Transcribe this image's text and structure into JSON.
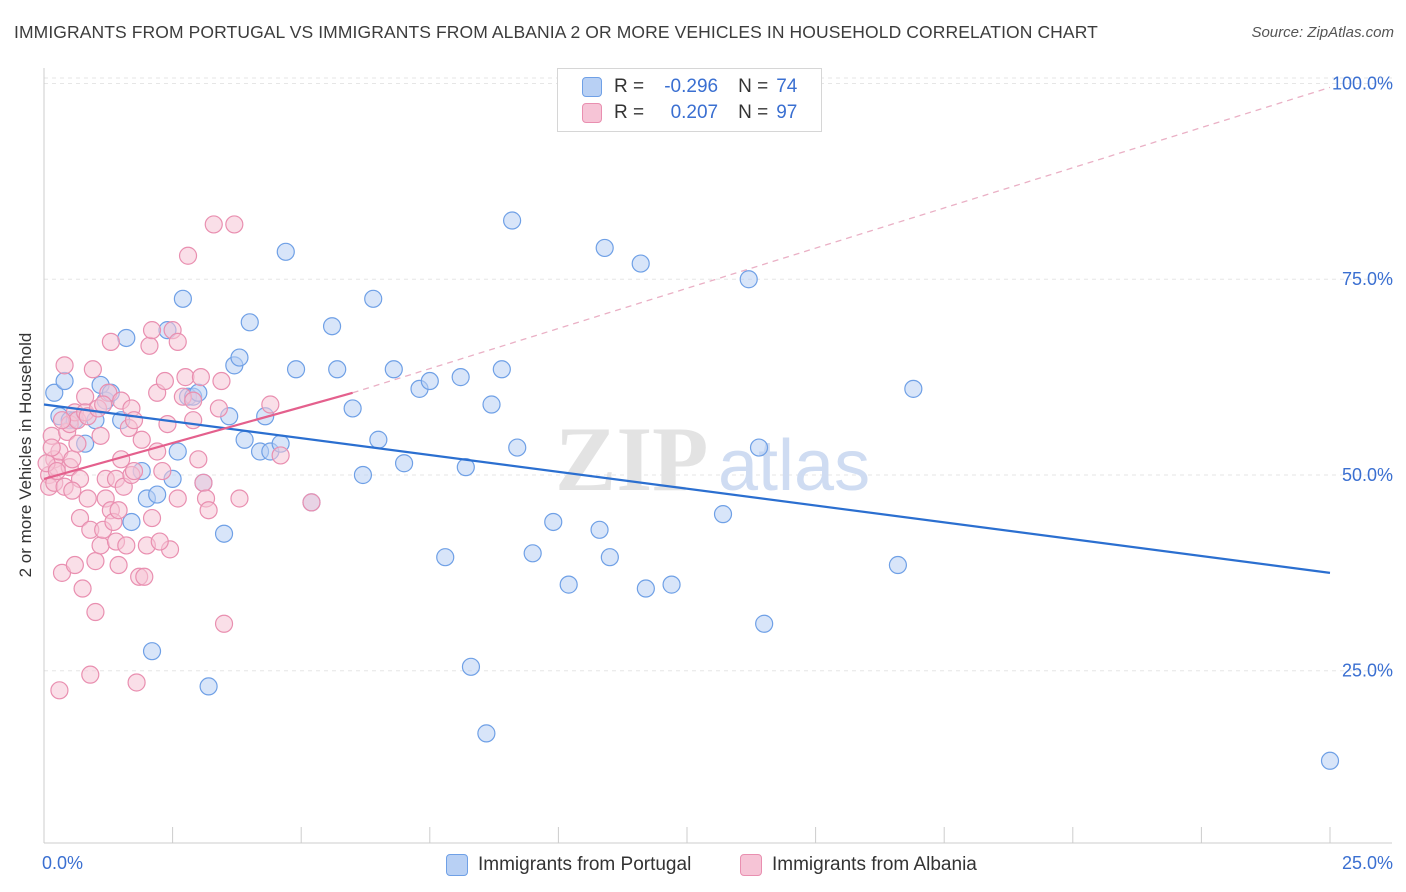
{
  "title": "IMMIGRANTS FROM PORTUGAL VS IMMIGRANTS FROM ALBANIA 2 OR MORE VEHICLES IN HOUSEHOLD CORRELATION CHART",
  "source": "Source: ZipAtlas.com",
  "watermark": {
    "zip": "ZIP",
    "atlas": "atlas"
  },
  "legend": {
    "rows": [
      {
        "r_label": "R =",
        "r_value": "-0.296",
        "n_label": "N =",
        "n_value": "74"
      },
      {
        "r_label": "R =",
        "r_value": "0.207",
        "n_label": "N =",
        "n_value": "97"
      }
    ]
  },
  "chart_data": {
    "type": "scatter",
    "title": "IMMIGRANTS FROM PORTUGAL VS IMMIGRANTS FROM ALBANIA 2 OR MORE VEHICLES IN HOUSEHOLD CORRELATION CHART",
    "xlabel": "",
    "ylabel": "2 or more Vehicles in Household",
    "xlim": [
      0,
      25
    ],
    "ylim": [
      3,
      103
    ],
    "x_tick_labels": [
      "0.0%",
      "25.0%"
    ],
    "y_ticks": [
      25,
      50,
      75,
      100
    ],
    "y_tick_labels": [
      "25.0%",
      "50.0%",
      "75.0%",
      "100.0%"
    ],
    "grid": true,
    "legend_position": "top-center",
    "series": [
      {
        "name": "Immigrants from Portugal",
        "color": "#6fa0e6",
        "fill": "#b8d0f4",
        "trend_color": "#2b6fd0",
        "trend": {
          "x": [
            0,
            25
          ],
          "y": [
            59,
            37.5
          ]
        },
        "points": [
          [
            0.2,
            60.5
          ],
          [
            0.3,
            57.5
          ],
          [
            0.4,
            62
          ],
          [
            0.5,
            57
          ],
          [
            0.6,
            57
          ],
          [
            0.8,
            54
          ],
          [
            1.0,
            57
          ],
          [
            1.1,
            61.5
          ],
          [
            1.2,
            59.5
          ],
          [
            1.3,
            60.5
          ],
          [
            1.5,
            57
          ],
          [
            1.6,
            67.5
          ],
          [
            1.7,
            44
          ],
          [
            1.9,
            50.5
          ],
          [
            2.0,
            47
          ],
          [
            2.1,
            27.5
          ],
          [
            2.2,
            47.5
          ],
          [
            2.4,
            68.5
          ],
          [
            2.5,
            49.5
          ],
          [
            2.6,
            53
          ],
          [
            2.7,
            72.5
          ],
          [
            2.8,
            60
          ],
          [
            2.9,
            60
          ],
          [
            3.0,
            60.5
          ],
          [
            3.1,
            49
          ],
          [
            3.2,
            23
          ],
          [
            3.5,
            42.5
          ],
          [
            3.6,
            57.5
          ],
          [
            3.7,
            64
          ],
          [
            3.8,
            65
          ],
          [
            3.9,
            54.5
          ],
          [
            4.0,
            69.5
          ],
          [
            4.2,
            53
          ],
          [
            4.3,
            57.5
          ],
          [
            4.4,
            53
          ],
          [
            4.6,
            54
          ],
          [
            4.7,
            78.5
          ],
          [
            4.9,
            63.5
          ],
          [
            5.2,
            46.5
          ],
          [
            5.6,
            69
          ],
          [
            5.7,
            63.5
          ],
          [
            6.4,
            72.5
          ],
          [
            6.0,
            58.5
          ],
          [
            6.2,
            50
          ],
          [
            6.5,
            54.5
          ],
          [
            6.8,
            63.5
          ],
          [
            7.0,
            51.5
          ],
          [
            7.3,
            61
          ],
          [
            7.5,
            62
          ],
          [
            7.8,
            39.5
          ],
          [
            8.1,
            62.5
          ],
          [
            8.2,
            51
          ],
          [
            8.3,
            25.5
          ],
          [
            8.6,
            17
          ],
          [
            8.7,
            59
          ],
          [
            8.9,
            63.5
          ],
          [
            9.1,
            82.5
          ],
          [
            9.2,
            53.5
          ],
          [
            9.5,
            40
          ],
          [
            9.9,
            44
          ],
          [
            10.2,
            36
          ],
          [
            10.8,
            43
          ],
          [
            11.0,
            39.5
          ],
          [
            10.9,
            79
          ],
          [
            11.6,
            77
          ],
          [
            11.7,
            35.5
          ],
          [
            12.2,
            36
          ],
          [
            13.2,
            45
          ],
          [
            13.7,
            75
          ],
          [
            13.9,
            53.5
          ],
          [
            14.0,
            31
          ],
          [
            16.6,
            38.5
          ],
          [
            16.9,
            61
          ],
          [
            25.0,
            13.5
          ]
        ]
      },
      {
        "name": "Immigrants from Albania",
        "color": "#e98fb0",
        "fill": "#f6c4d6",
        "trend_color": "#e4608d",
        "trend": {
          "x": [
            0,
            6
          ],
          "y": [
            49.5,
            60.5
          ]
        },
        "trend_ext": {
          "x": [
            6,
            25
          ],
          "y": [
            60.5,
            99.5
          ]
        },
        "points": [
          [
            0.1,
            50
          ],
          [
            0.1,
            48.5
          ],
          [
            0.15,
            55
          ],
          [
            0.2,
            52
          ],
          [
            0.2,
            49
          ],
          [
            0.25,
            51
          ],
          [
            0.3,
            22.5
          ],
          [
            0.3,
            53
          ],
          [
            0.35,
            37.5
          ],
          [
            0.4,
            64
          ],
          [
            0.4,
            48.5
          ],
          [
            0.45,
            55.5
          ],
          [
            0.5,
            51
          ],
          [
            0.5,
            56.5
          ],
          [
            0.55,
            52
          ],
          [
            0.6,
            38.5
          ],
          [
            0.6,
            58
          ],
          [
            0.65,
            57
          ],
          [
            0.7,
            49.5
          ],
          [
            0.7,
            44.5
          ],
          [
            0.75,
            35.5
          ],
          [
            0.8,
            60
          ],
          [
            0.8,
            58
          ],
          [
            0.85,
            57.5
          ],
          [
            0.9,
            43
          ],
          [
            0.9,
            24.5
          ],
          [
            0.95,
            63.5
          ],
          [
            1.0,
            32.5
          ],
          [
            1.0,
            39
          ],
          [
            1.05,
            58.5
          ],
          [
            1.1,
            55
          ],
          [
            1.1,
            41
          ],
          [
            1.15,
            43
          ],
          [
            1.2,
            49.5
          ],
          [
            1.2,
            47
          ],
          [
            1.25,
            60.5
          ],
          [
            1.3,
            45.5
          ],
          [
            1.3,
            67
          ],
          [
            1.35,
            44
          ],
          [
            1.4,
            49.5
          ],
          [
            1.4,
            41.5
          ],
          [
            1.45,
            45.5
          ],
          [
            1.5,
            59.5
          ],
          [
            1.5,
            52
          ],
          [
            1.55,
            48.5
          ],
          [
            1.6,
            41
          ],
          [
            1.65,
            56
          ],
          [
            1.7,
            58.5
          ],
          [
            1.7,
            50
          ],
          [
            1.75,
            57
          ],
          [
            1.8,
            23.5
          ],
          [
            1.85,
            37
          ],
          [
            1.9,
            54.5
          ],
          [
            1.95,
            37
          ],
          [
            2.0,
            41
          ],
          [
            2.05,
            66.5
          ],
          [
            2.1,
            68.5
          ],
          [
            2.1,
            44.5
          ],
          [
            2.2,
            60.5
          ],
          [
            2.2,
            53
          ],
          [
            2.3,
            50.5
          ],
          [
            2.35,
            62
          ],
          [
            2.4,
            56.5
          ],
          [
            2.45,
            40.5
          ],
          [
            2.5,
            68.5
          ],
          [
            2.6,
            67
          ],
          [
            2.6,
            47
          ],
          [
            2.7,
            60
          ],
          [
            2.75,
            62.5
          ],
          [
            2.8,
            78
          ],
          [
            2.9,
            57
          ],
          [
            2.9,
            59.5
          ],
          [
            3.0,
            52
          ],
          [
            3.05,
            62.5
          ],
          [
            3.1,
            49
          ],
          [
            3.15,
            47
          ],
          [
            3.2,
            45.5
          ],
          [
            3.3,
            82
          ],
          [
            3.4,
            58.5
          ],
          [
            3.45,
            62
          ],
          [
            3.5,
            31
          ],
          [
            3.7,
            82
          ],
          [
            3.8,
            47
          ],
          [
            4.4,
            59
          ],
          [
            4.6,
            52.5
          ],
          [
            5.2,
            46.5
          ],
          [
            0.05,
            51.5
          ],
          [
            0.15,
            53.5
          ],
          [
            0.25,
            50.5
          ],
          [
            0.55,
            48
          ],
          [
            0.65,
            54
          ],
          [
            0.85,
            47
          ],
          [
            1.15,
            59
          ],
          [
            1.45,
            38.5
          ],
          [
            1.75,
            50.5
          ],
          [
            2.25,
            41.5
          ],
          [
            0.35,
            57
          ]
        ]
      }
    ]
  },
  "bottom_legend": [
    {
      "label": "Immigrants from Portugal"
    },
    {
      "label": "Immigrants from Albania"
    }
  ]
}
